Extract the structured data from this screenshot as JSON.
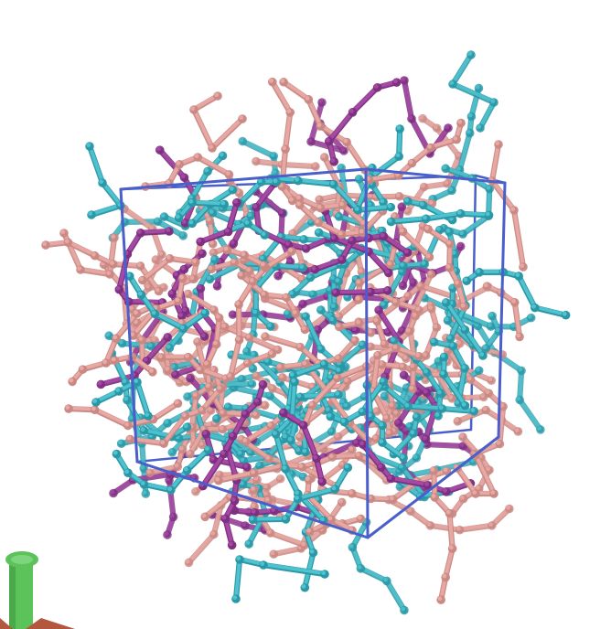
{
  "scene": {
    "palette": {
      "background": "#ffffff",
      "cyan": "#4fc3cf",
      "cyan_dark": "#2a97a6",
      "pink": "#e9a9a4",
      "pink_dark": "#c98883",
      "magenta": "#a64aa6",
      "magenta_dark": "#7d2f80",
      "box": "#4a5fc9",
      "axis_green": "#5cc25a",
      "axis_green_dark": "#3c8f3b",
      "axis_red": "#b4573f"
    },
    "elements": {
      "cell": "periodic-box",
      "molecules": "ball-and-stick-chains",
      "axes": "orientation-axes"
    }
  }
}
